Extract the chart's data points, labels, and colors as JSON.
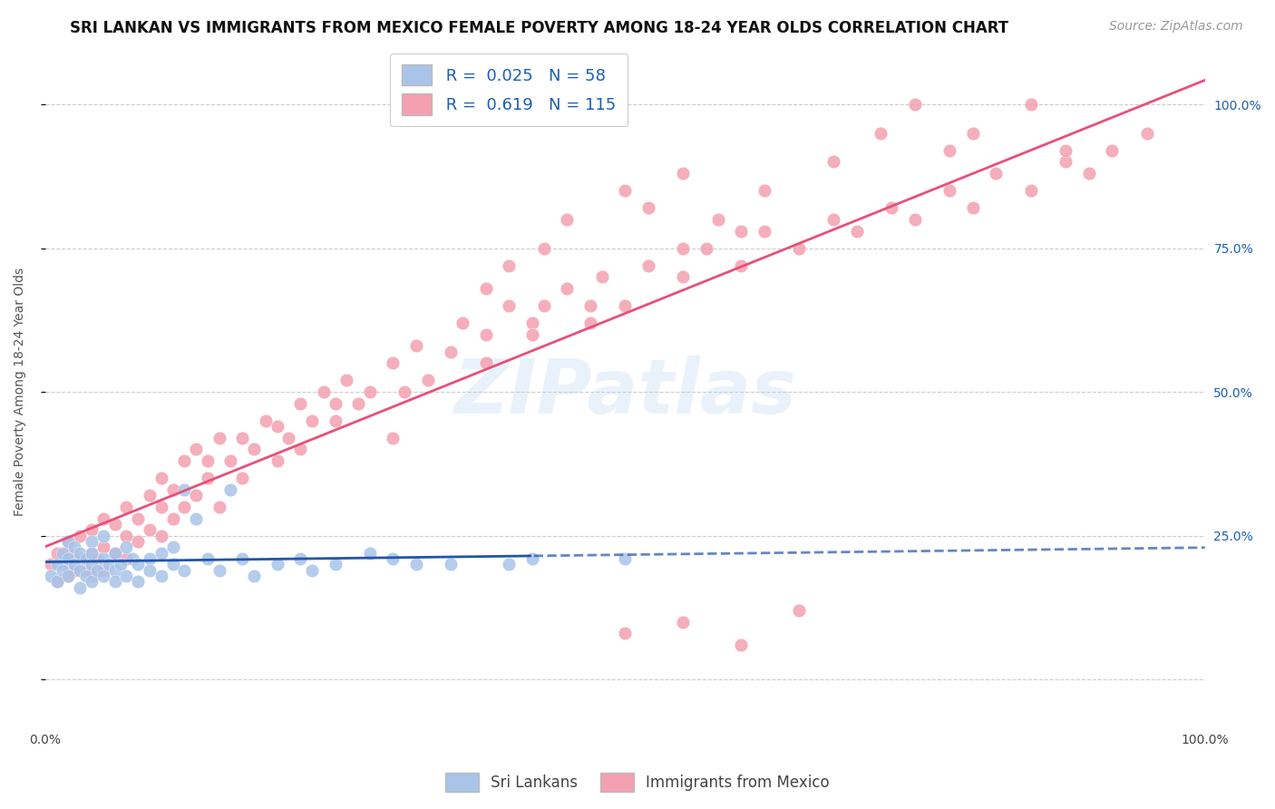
{
  "title": "SRI LANKAN VS IMMIGRANTS FROM MEXICO FEMALE POVERTY AMONG 18-24 YEAR OLDS CORRELATION CHART",
  "source": "Source: ZipAtlas.com",
  "ylabel": "Female Poverty Among 18-24 Year Olds",
  "xlim": [
    0,
    1
  ],
  "ylim": [
    -0.08,
    1.08
  ],
  "xtick_labels": [
    "0.0%",
    "100.0%"
  ],
  "right_ytick_labels": [
    "25.0%",
    "50.0%",
    "75.0%",
    "100.0%"
  ],
  "right_ytick_vals": [
    0.25,
    0.5,
    0.75,
    1.0
  ],
  "ytick_vals": [
    0.0,
    0.25,
    0.5,
    0.75,
    1.0
  ],
  "sri_lanka_R": "0.025",
  "sri_lanka_N": "58",
  "mexico_R": "0.619",
  "mexico_N": "115",
  "sri_lanka_color": "#a8c4e8",
  "mexico_color": "#f4a0b0",
  "sri_lanka_line_color": "#2255aa",
  "mexico_line_color": "#e8507a",
  "legend_color": "#1a5fb4",
  "background_color": "#ffffff",
  "grid_color": "#cccccc",
  "watermark": "ZIPatlas",
  "title_fontsize": 12,
  "source_fontsize": 10,
  "axis_label_fontsize": 10,
  "tick_fontsize": 10,
  "legend_fontsize": 13,
  "sri_lanka_x": [
    0.005,
    0.01,
    0.01,
    0.015,
    0.015,
    0.02,
    0.02,
    0.02,
    0.025,
    0.025,
    0.03,
    0.03,
    0.03,
    0.035,
    0.035,
    0.04,
    0.04,
    0.04,
    0.04,
    0.045,
    0.05,
    0.05,
    0.05,
    0.055,
    0.06,
    0.06,
    0.06,
    0.065,
    0.07,
    0.07,
    0.075,
    0.08,
    0.08,
    0.09,
    0.09,
    0.1,
    0.1,
    0.11,
    0.11,
    0.12,
    0.12,
    0.13,
    0.14,
    0.15,
    0.16,
    0.17,
    0.18,
    0.2,
    0.22,
    0.23,
    0.25,
    0.28,
    0.3,
    0.32,
    0.35,
    0.4,
    0.42,
    0.5
  ],
  "sri_lanka_y": [
    0.18,
    0.2,
    0.17,
    0.22,
    0.19,
    0.21,
    0.18,
    0.24,
    0.2,
    0.23,
    0.19,
    0.22,
    0.16,
    0.21,
    0.18,
    0.17,
    0.2,
    0.24,
    0.22,
    0.19,
    0.21,
    0.18,
    0.25,
    0.2,
    0.22,
    0.19,
    0.17,
    0.2,
    0.23,
    0.18,
    0.21,
    0.2,
    0.17,
    0.21,
    0.19,
    0.22,
    0.18,
    0.2,
    0.23,
    0.33,
    0.19,
    0.28,
    0.21,
    0.19,
    0.33,
    0.21,
    0.18,
    0.2,
    0.21,
    0.19,
    0.2,
    0.22,
    0.21,
    0.2,
    0.2,
    0.2,
    0.21,
    0.21
  ],
  "mexico_x": [
    0.005,
    0.01,
    0.01,
    0.015,
    0.02,
    0.02,
    0.02,
    0.025,
    0.03,
    0.03,
    0.035,
    0.04,
    0.04,
    0.04,
    0.045,
    0.05,
    0.05,
    0.05,
    0.06,
    0.06,
    0.07,
    0.07,
    0.07,
    0.08,
    0.08,
    0.09,
    0.09,
    0.1,
    0.1,
    0.1,
    0.11,
    0.11,
    0.12,
    0.12,
    0.13,
    0.13,
    0.14,
    0.14,
    0.15,
    0.15,
    0.16,
    0.17,
    0.17,
    0.18,
    0.19,
    0.2,
    0.2,
    0.21,
    0.22,
    0.22,
    0.23,
    0.24,
    0.25,
    0.26,
    0.27,
    0.28,
    0.3,
    0.31,
    0.32,
    0.33,
    0.35,
    0.36,
    0.38,
    0.4,
    0.42,
    0.43,
    0.45,
    0.47,
    0.48,
    0.5,
    0.52,
    0.55,
    0.57,
    0.6,
    0.62,
    0.65,
    0.68,
    0.7,
    0.73,
    0.75,
    0.78,
    0.8,
    0.82,
    0.85,
    0.88,
    0.9,
    0.92,
    0.95,
    0.38,
    0.4,
    0.43,
    0.45,
    0.5,
    0.52,
    0.55,
    0.6,
    0.38,
    0.42,
    0.47,
    0.3,
    0.25,
    0.55,
    0.58,
    0.62,
    0.68,
    0.72,
    0.75,
    0.78,
    0.8,
    0.85,
    0.88,
    0.5,
    0.55,
    0.6,
    0.65
  ],
  "mexico_y": [
    0.2,
    0.22,
    0.17,
    0.2,
    0.18,
    0.22,
    0.24,
    0.19,
    0.21,
    0.25,
    0.19,
    0.22,
    0.18,
    0.26,
    0.21,
    0.23,
    0.19,
    0.28,
    0.22,
    0.27,
    0.25,
    0.21,
    0.3,
    0.24,
    0.28,
    0.26,
    0.32,
    0.25,
    0.3,
    0.35,
    0.28,
    0.33,
    0.3,
    0.38,
    0.32,
    0.4,
    0.35,
    0.38,
    0.3,
    0.42,
    0.38,
    0.35,
    0.42,
    0.4,
    0.45,
    0.38,
    0.44,
    0.42,
    0.4,
    0.48,
    0.45,
    0.5,
    0.45,
    0.52,
    0.48,
    0.5,
    0.55,
    0.5,
    0.58,
    0.52,
    0.57,
    0.62,
    0.6,
    0.65,
    0.62,
    0.65,
    0.68,
    0.62,
    0.7,
    0.65,
    0.72,
    0.7,
    0.75,
    0.72,
    0.78,
    0.75,
    0.8,
    0.78,
    0.82,
    0.8,
    0.85,
    0.82,
    0.88,
    0.85,
    0.9,
    0.88,
    0.92,
    0.95,
    0.68,
    0.72,
    0.75,
    0.8,
    0.85,
    0.82,
    0.88,
    0.78,
    0.55,
    0.6,
    0.65,
    0.42,
    0.48,
    0.75,
    0.8,
    0.85,
    0.9,
    0.95,
    1.0,
    0.92,
    0.95,
    1.0,
    0.92,
    0.08,
    0.1,
    0.06,
    0.12
  ]
}
